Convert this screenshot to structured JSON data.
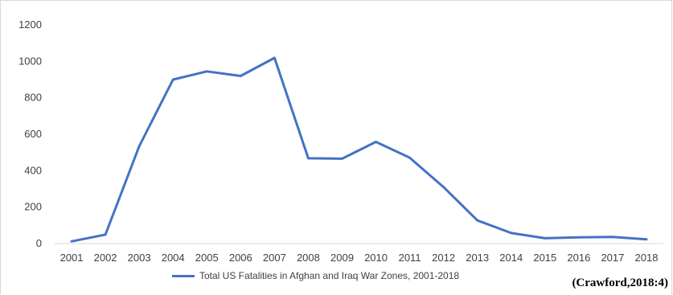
{
  "chart_data": {
    "type": "line",
    "x": [
      "2001",
      "2002",
      "2003",
      "2004",
      "2005",
      "2006",
      "2007",
      "2008",
      "2009",
      "2010",
      "2011",
      "2012",
      "2013",
      "2014",
      "2015",
      "2016",
      "2017",
      "2018"
    ],
    "series": [
      {
        "name": "Total US Fatalities in Afghan and Iraq War Zones, 2001-2018",
        "values": [
          12,
          49,
          534,
          900,
          945,
          920,
          1019,
          468,
          466,
          558,
          471,
          310,
          127,
          58,
          29,
          34,
          36,
          23
        ]
      }
    ],
    "ylim": [
      0,
      1200
    ],
    "yticks": [
      0,
      200,
      400,
      600,
      800,
      1000,
      1200
    ],
    "grid": false,
    "legend_position": "bottom",
    "line_color": "#4472c4"
  },
  "legend": {
    "label": "Total US Fatalities in Afghan and Iraq War Zones, 2001-2018"
  },
  "source": "(Crawford,2018:4)"
}
